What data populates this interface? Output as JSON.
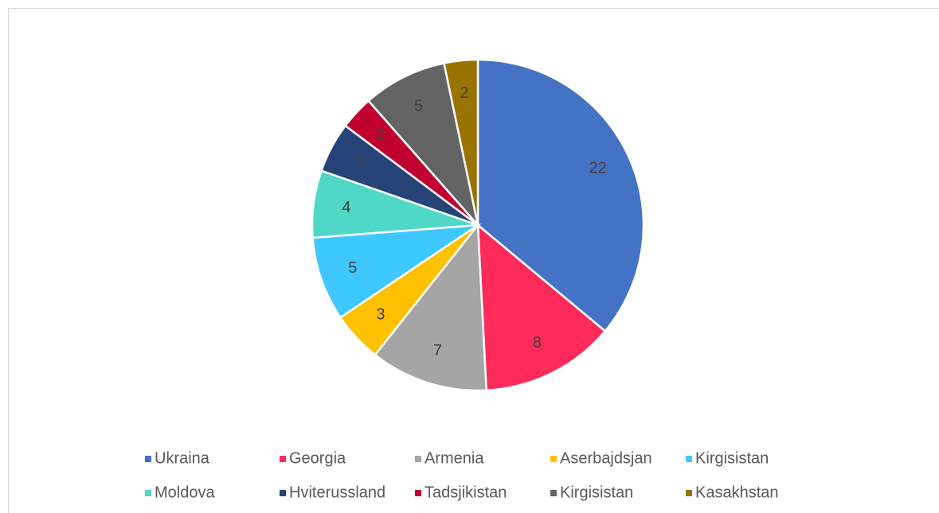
{
  "chart_data": {
    "type": "pie",
    "categories": [
      "Ukraina",
      "Georgia",
      "Armenia",
      "Aserbajdsjan",
      "Kirgisistan",
      "Moldova",
      "Hviterussland",
      "Tadsjikistan",
      "Kirgisistan",
      "Kasakhstan"
    ],
    "values": [
      22,
      8,
      7,
      3,
      5,
      4,
      3,
      2,
      5,
      2
    ],
    "colors": [
      "#4472c4",
      "#ff2a5a",
      "#a5a5a5",
      "#ffc000",
      "#3ec8ff",
      "#4fd8c8",
      "#264478",
      "#c0002e",
      "#636363",
      "#997300"
    ],
    "legend": "bottom"
  }
}
